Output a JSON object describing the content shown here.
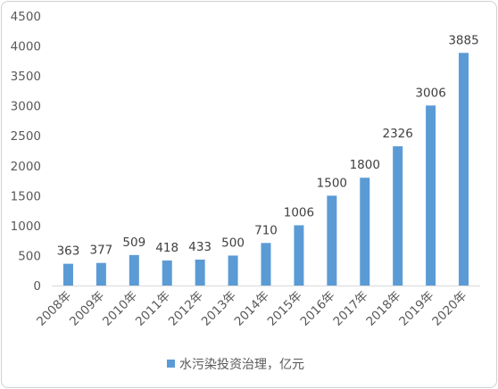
{
  "chart_data": {
    "type": "bar",
    "categories": [
      "2008年",
      "2009年",
      "2010年",
      "2011年",
      "2012年",
      "2013年",
      "2014年",
      "2015年",
      "2016年",
      "2017年",
      "2018年",
      "2019年",
      "2020年"
    ],
    "series": [
      {
        "name": "水污染投资治理，亿元",
        "values": [
          363,
          377,
          509,
          418,
          433,
          500,
          710,
          1006,
          1500,
          1800,
          2326,
          3006,
          3885
        ]
      }
    ],
    "value_labels": [
      "363",
      "377",
      "509",
      "418",
      "433",
      "500",
      "710",
      "1006",
      "1500",
      "1800",
      "2326",
      "3006",
      "3885"
    ],
    "yticks": [
      "0",
      "500",
      "1000",
      "1500",
      "2000",
      "2500",
      "3000",
      "3500",
      "4000",
      "4500"
    ],
    "ylim": [
      0,
      4500
    ],
    "grid": false,
    "legend_position": "bottom",
    "colors": {
      "bar": "#5b9bd5",
      "axis": "#d9d9d9",
      "text": "#595959"
    }
  }
}
